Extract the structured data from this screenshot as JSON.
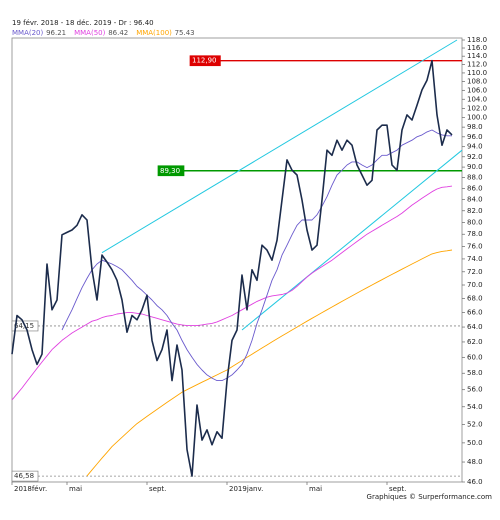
{
  "header": "19 févr. 2018 - 18 déc. 2019 - Dr : 96.40",
  "footer": "Graphiques © Surperformance.com",
  "chart_data": {
    "type": "line",
    "log_scale": true,
    "ylim": [
      46,
      118
    ],
    "yticks": [
      {
        "value": 46,
        "label": "46.0"
      },
      {
        "value": 48,
        "label": "48.0"
      },
      {
        "value": 50,
        "label": "50.0"
      },
      {
        "value": 52,
        "label": "52.0"
      },
      {
        "value": 54,
        "label": "54.0"
      },
      {
        "value": 56,
        "label": "56.0"
      },
      {
        "value": 58,
        "label": "58.0"
      },
      {
        "value": 60,
        "label": "60.0"
      },
      {
        "value": 62,
        "label": "62.0"
      },
      {
        "value": 64,
        "label": "64.0"
      },
      {
        "value": 66,
        "label": "66.0"
      },
      {
        "value": 68,
        "label": "68.0"
      },
      {
        "value": 70,
        "label": "70.0"
      },
      {
        "value": 72,
        "label": "72.0"
      },
      {
        "value": 74,
        "label": "74.0"
      },
      {
        "value": 76,
        "label": "76.0"
      },
      {
        "value": 78,
        "label": "78.0"
      },
      {
        "value": 80,
        "label": "80.0"
      },
      {
        "value": 82,
        "label": "82.0"
      },
      {
        "value": 84,
        "label": "84.0"
      },
      {
        "value": 86,
        "label": "86.0"
      },
      {
        "value": 88,
        "label": "88.0"
      },
      {
        "value": 90,
        "label": "90.0"
      },
      {
        "value": 92,
        "label": "92.0"
      },
      {
        "value": 94,
        "label": "94.0"
      },
      {
        "value": 96,
        "label": "96.0"
      },
      {
        "value": 98,
        "label": "98.0"
      },
      {
        "value": 100,
        "label": "100.0"
      },
      {
        "value": 102,
        "label": "102.0"
      },
      {
        "value": 104,
        "label": "104.0"
      },
      {
        "value": 106,
        "label": "106.0"
      },
      {
        "value": 108,
        "label": "108.0"
      },
      {
        "value": 110,
        "label": "110.0"
      },
      {
        "value": 112,
        "label": "112.0"
      },
      {
        "value": 114,
        "label": "114.0"
      },
      {
        "value": 116,
        "label": "116.0"
      },
      {
        "value": 118,
        "label": "118.0"
      }
    ],
    "xtick_labels": [
      {
        "index": 0,
        "label": "2018févr."
      },
      {
        "index": 11,
        "label": "mai"
      },
      {
        "index": 27,
        "label": "sept."
      },
      {
        "index": 43,
        "label": "2019janv."
      },
      {
        "index": 59,
        "label": "mai"
      },
      {
        "index": 75,
        "label": "sept."
      }
    ],
    "levels": [
      {
        "value": 112.9,
        "label": "112,90",
        "color": "#dd0000",
        "style": "solid"
      },
      {
        "value": 89.3,
        "label": "89,30",
        "color": "#009900",
        "style": "solid"
      },
      {
        "value": 64.15,
        "label": "64,15",
        "color": "#888888",
        "style": "dashed"
      },
      {
        "value": 46.58,
        "label": "46,58",
        "color": "#888888",
        "style": "dashed"
      }
    ],
    "channels": [
      {
        "color": "#22c8e0",
        "points": [
          [
            18,
            75.0
          ],
          [
            89,
            118
          ]
        ]
      },
      {
        "color": "#22c8e0",
        "points": [
          [
            46,
            63.6
          ],
          [
            90,
            93.3
          ]
        ]
      }
    ],
    "series": [
      {
        "color": "#1c2c4c",
        "width": 1.6,
        "values": [
          60.4,
          65.6,
          65.0,
          63.6,
          61.0,
          59.1,
          60.4,
          73.2,
          66.4,
          67.8,
          77.9,
          78.3,
          78.7,
          79.5,
          81.3,
          80.4,
          72.3,
          67.8,
          74.6,
          73.5,
          72.3,
          70.7,
          67.8,
          63.3,
          65.6,
          65.0,
          66.4,
          68.5,
          62.2,
          59.6,
          61.0,
          63.6,
          57.1,
          61.6,
          58.4,
          49.3,
          46.58,
          54.2,
          50.3,
          51.4,
          49.8,
          51.2,
          50.5,
          57.1,
          62.2,
          63.6,
          71.5,
          66.4,
          72.3,
          70.7,
          76.2,
          75.4,
          73.8,
          77.0,
          83.9,
          91.4,
          89.4,
          88.5,
          83.9,
          78.7,
          75.4,
          76.2,
          83.9,
          93.3,
          92.3,
          95.3,
          93.3,
          95.3,
          94.3,
          90.4,
          88.5,
          86.6,
          87.5,
          97.4,
          98.4,
          98.4,
          90.4,
          89.4,
          97.4,
          100.6,
          99.5,
          102.7,
          106.1,
          108.3,
          112.9,
          100.6,
          94.3,
          97.4,
          96.4
        ]
      },
      {
        "name": "MMA(20)",
        "color": "#6a5acd",
        "width": 0.9,
        "values": [
          null,
          null,
          null,
          null,
          null,
          null,
          null,
          null,
          null,
          null,
          63.6,
          65.0,
          66.4,
          68.0,
          69.6,
          71.0,
          72.3,
          73.2,
          73.8,
          73.5,
          73.2,
          72.8,
          72.3,
          71.5,
          70.7,
          69.8,
          69.2,
          68.5,
          67.8,
          67.0,
          66.4,
          65.6,
          64.5,
          63.6,
          62.2,
          61.0,
          60.0,
          59.1,
          58.4,
          57.8,
          57.4,
          57.1,
          57.1,
          57.4,
          57.8,
          58.4,
          59.1,
          60.4,
          62.2,
          64.5,
          66.4,
          68.5,
          70.7,
          72.3,
          74.6,
          76.2,
          77.9,
          79.5,
          80.4,
          80.4,
          80.4,
          81.3,
          82.8,
          84.5,
          86.6,
          88.5,
          89.4,
          90.4,
          91.0,
          91.0,
          90.4,
          89.9,
          90.4,
          91.4,
          92.3,
          92.3,
          92.8,
          93.3,
          94.3,
          94.8,
          95.3,
          96.0,
          96.4,
          97.0,
          97.4,
          96.8,
          96.4,
          96.2,
          96.21
        ]
      },
      {
        "name": "MMA(50)",
        "color": "#e040e0",
        "width": 0.9,
        "values": [
          54.8,
          55.5,
          56.2,
          57.0,
          57.8,
          58.6,
          59.4,
          60.2,
          61.0,
          61.6,
          62.2,
          62.7,
          63.2,
          63.6,
          64.0,
          64.4,
          64.8,
          65.0,
          65.3,
          65.5,
          65.6,
          65.8,
          65.9,
          66.0,
          66.0,
          65.9,
          65.8,
          65.6,
          65.4,
          65.2,
          65.0,
          64.8,
          64.6,
          64.4,
          64.3,
          64.2,
          64.2,
          64.2,
          64.3,
          64.4,
          64.5,
          64.7,
          65.0,
          65.3,
          65.6,
          66.0,
          66.4,
          66.8,
          67.2,
          67.6,
          67.9,
          68.2,
          68.4,
          68.5,
          68.6,
          68.8,
          69.2,
          69.8,
          70.5,
          71.2,
          71.8,
          72.3,
          72.8,
          73.3,
          73.8,
          74.4,
          75.0,
          75.6,
          76.2,
          76.8,
          77.4,
          78.0,
          78.5,
          79.0,
          79.5,
          80.0,
          80.5,
          81.0,
          81.6,
          82.3,
          83.0,
          83.6,
          84.2,
          84.8,
          85.4,
          85.9,
          86.2,
          86.3,
          86.42
        ]
      },
      {
        "name": "MMA(100)",
        "color": "#ffa500",
        "width": 0.9,
        "values": [
          null,
          null,
          null,
          null,
          null,
          null,
          null,
          null,
          null,
          null,
          null,
          null,
          null,
          null,
          null,
          46.6,
          47.2,
          47.8,
          48.4,
          49.0,
          49.6,
          50.1,
          50.6,
          51.1,
          51.6,
          52.1,
          52.5,
          52.9,
          53.3,
          53.7,
          54.1,
          54.5,
          54.9,
          55.3,
          55.7,
          56.0,
          56.3,
          56.6,
          56.9,
          57.2,
          57.5,
          57.8,
          58.1,
          58.4,
          58.8,
          59.2,
          59.6,
          60.0,
          60.4,
          60.8,
          61.2,
          61.6,
          62.0,
          62.4,
          62.8,
          63.2,
          63.6,
          64.0,
          64.4,
          64.8,
          65.2,
          65.6,
          66.0,
          66.4,
          66.8,
          67.2,
          67.6,
          68.0,
          68.4,
          68.8,
          69.2,
          69.6,
          70.0,
          70.4,
          70.8,
          71.2,
          71.6,
          72.0,
          72.4,
          72.8,
          73.2,
          73.6,
          74.0,
          74.4,
          74.8,
          75.0,
          75.2,
          75.3,
          75.43
        ]
      }
    ]
  }
}
